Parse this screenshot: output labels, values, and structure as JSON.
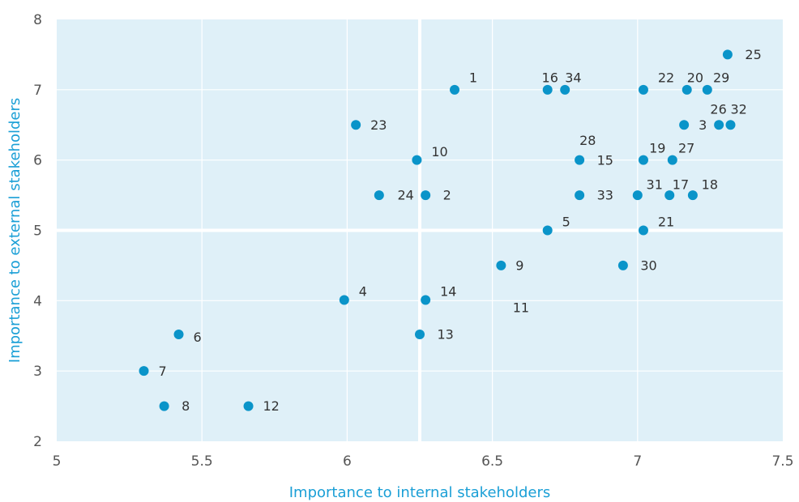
{
  "chart_data": {
    "type": "scatter",
    "title": "",
    "xlabel": "Importance to internal stakeholders",
    "ylabel": "Importance to external stakeholders",
    "xlim": [
      5,
      7.5
    ],
    "ylim": [
      2,
      8
    ],
    "xticks": [
      "5",
      "5.5",
      "6",
      "6.5",
      "7",
      "7.5"
    ],
    "yticks": [
      "2",
      "3",
      "4",
      "5",
      "6",
      "7",
      "8"
    ],
    "divider_x": 6.25,
    "divider_y": 5,
    "grid": true,
    "colors": {
      "marker": "#0a94c9",
      "plot_bg": "#dff0f8",
      "grid": "#ffffff",
      "axis_title": "#1a9fd6"
    },
    "points": [
      {
        "x": 6.37,
        "y": 7.0,
        "label": "1",
        "lx": 6.42,
        "ly": 7.17,
        "anchor": "start"
      },
      {
        "x": 6.27,
        "y": 5.5,
        "label": "2",
        "lx": 6.33,
        "ly": 5.5,
        "anchor": "start"
      },
      {
        "x": 7.16,
        "y": 6.5,
        "label": "3",
        "lx": 7.21,
        "ly": 6.5,
        "anchor": "start"
      },
      {
        "x": 5.99,
        "y": 4.01,
        "label": "4",
        "lx": 6.04,
        "ly": 4.13,
        "anchor": "start"
      },
      {
        "x": 6.69,
        "y": 5.0,
        "label": "5",
        "lx": 6.74,
        "ly": 5.12,
        "anchor": "start"
      },
      {
        "x": 5.42,
        "y": 3.52,
        "label": "6",
        "lx": 5.47,
        "ly": 3.48,
        "anchor": "start"
      },
      {
        "x": 5.3,
        "y": 3.0,
        "label": "7",
        "lx": 5.35,
        "ly": 3.0,
        "anchor": "start"
      },
      {
        "x": 5.37,
        "y": 2.5,
        "label": "8",
        "lx": 5.43,
        "ly": 2.5,
        "anchor": "start"
      },
      {
        "x": 6.53,
        "y": 4.5,
        "label": "9",
        "lx": 6.58,
        "ly": 4.5,
        "anchor": "start"
      },
      {
        "x": 6.24,
        "y": 6.0,
        "label": "10",
        "lx": 6.29,
        "ly": 6.12,
        "anchor": "start"
      },
      {
        "x": null,
        "y": null,
        "label": "11",
        "lx": 6.57,
        "ly": 3.9,
        "anchor": "start"
      },
      {
        "x": 5.66,
        "y": 2.5,
        "label": "12",
        "lx": 5.71,
        "ly": 2.5,
        "anchor": "start"
      },
      {
        "x": 6.25,
        "y": 3.52,
        "label": "13",
        "lx": 6.31,
        "ly": 3.52,
        "anchor": "start"
      },
      {
        "x": 6.27,
        "y": 4.01,
        "label": "14",
        "lx": 6.32,
        "ly": 4.13,
        "anchor": "start"
      },
      {
        "x": 6.8,
        "y": 6.0,
        "label": "15",
        "lx": 6.86,
        "ly": 6.0,
        "anchor": "start"
      },
      {
        "x": 6.69,
        "y": 7.0,
        "label": "16",
        "lx": 6.67,
        "ly": 7.17,
        "anchor": "start"
      },
      {
        "x": 7.11,
        "y": 5.5,
        "label": "17",
        "lx": 7.12,
        "ly": 5.65,
        "anchor": "start"
      },
      {
        "x": 7.19,
        "y": 5.5,
        "label": "18",
        "lx": 7.22,
        "ly": 5.65,
        "anchor": "start"
      },
      {
        "x": 7.02,
        "y": 6.0,
        "label": "19",
        "lx": 7.04,
        "ly": 6.17,
        "anchor": "start"
      },
      {
        "x": 7.17,
        "y": 7.0,
        "label": "20",
        "lx": 7.17,
        "ly": 7.17,
        "anchor": "start"
      },
      {
        "x": 7.02,
        "y": 5.0,
        "label": "21",
        "lx": 7.07,
        "ly": 5.12,
        "anchor": "start"
      },
      {
        "x": 7.02,
        "y": 7.0,
        "label": "22",
        "lx": 7.07,
        "ly": 7.17,
        "anchor": "start"
      },
      {
        "x": 6.03,
        "y": 6.5,
        "label": "23",
        "lx": 6.08,
        "ly": 6.5,
        "anchor": "start"
      },
      {
        "x": 6.11,
        "y": 5.5,
        "label": "24",
        "lx": 6.23,
        "ly": 5.5,
        "anchor": "end"
      },
      {
        "x": 7.31,
        "y": 7.5,
        "label": "25",
        "lx": 7.37,
        "ly": 7.5,
        "anchor": "start"
      },
      {
        "x": 7.28,
        "y": 6.5,
        "label": "26",
        "lx": 7.25,
        "ly": 6.72,
        "anchor": "start"
      },
      {
        "x": 7.12,
        "y": 6.0,
        "label": "27",
        "lx": 7.14,
        "ly": 6.17,
        "anchor": "start"
      },
      {
        "x": null,
        "y": null,
        "label": "28",
        "lx": 6.8,
        "ly": 6.28,
        "anchor": "start"
      },
      {
        "x": 7.24,
        "y": 7.0,
        "label": "29",
        "lx": 7.26,
        "ly": 7.17,
        "anchor": "start"
      },
      {
        "x": 6.95,
        "y": 4.5,
        "label": "30",
        "lx": 7.01,
        "ly": 4.5,
        "anchor": "start"
      },
      {
        "x": 7.0,
        "y": 5.5,
        "label": "31",
        "lx": 7.03,
        "ly": 5.65,
        "anchor": "start"
      },
      {
        "x": 7.32,
        "y": 6.5,
        "label": "32",
        "lx": 7.32,
        "ly": 6.72,
        "anchor": "start"
      },
      {
        "x": 6.8,
        "y": 5.5,
        "label": "33",
        "lx": 6.86,
        "ly": 5.5,
        "anchor": "start"
      },
      {
        "x": 6.75,
        "y": 7.0,
        "label": "34",
        "lx": 6.75,
        "ly": 7.17,
        "anchor": "start"
      }
    ]
  }
}
